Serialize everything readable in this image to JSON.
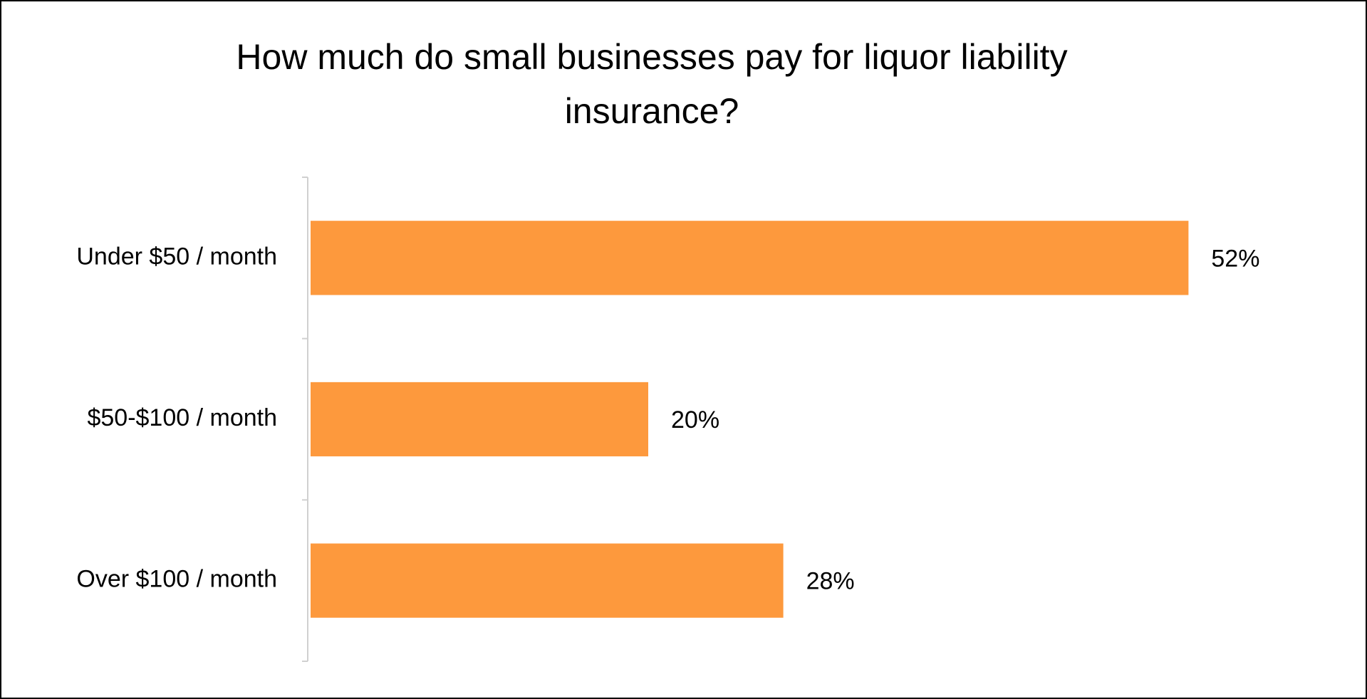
{
  "chart_data": {
    "type": "hbar",
    "title": "How much do small businesses pay for liquor liability insurance?",
    "categories": [
      "Under $50 / month",
      "$50-$100 / month",
      "Over $100 / month"
    ],
    "values": [
      52,
      20,
      28
    ],
    "value_labels": [
      "52%",
      "20%",
      "28%"
    ],
    "color": "#fd993d",
    "xlim": [
      0,
      60
    ]
  }
}
